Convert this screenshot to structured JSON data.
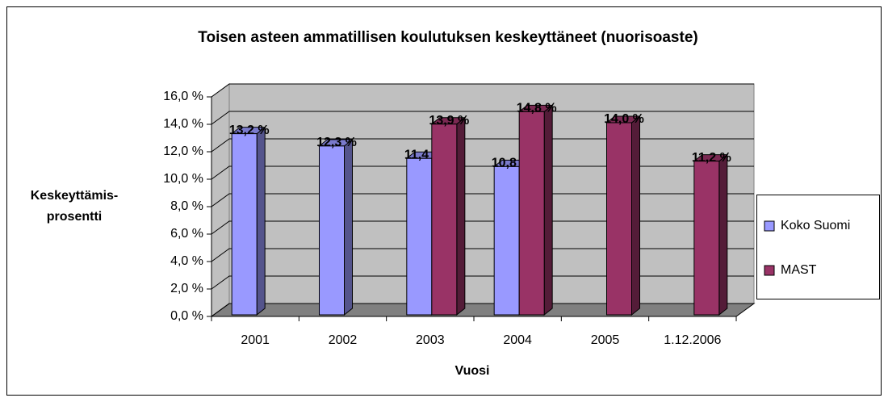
{
  "chart_data": {
    "type": "bar3d",
    "title": "Toisen asteen ammatillisen koulutuksen keskeyttäneet (nuorisoaste)",
    "x_label": "Vuosi",
    "y_label": [
      "Keskeyttämis-",
      "prosentti"
    ],
    "categories": [
      "2001",
      "2002",
      "2003",
      "2004",
      "2005",
      "1.12.2006"
    ],
    "series": [
      {
        "name": "Koko Suomi",
        "color": "#9999ff",
        "values": [
          13.2,
          12.3,
          11.4,
          10.8,
          null,
          null
        ],
        "value_labels": [
          "13,2 %",
          "12,3 %",
          "11,4 %",
          "10,8 %",
          null,
          null
        ]
      },
      {
        "name": "MAST",
        "color": "#993366",
        "values": [
          null,
          null,
          13.9,
          14.8,
          14.0,
          11.2
        ],
        "value_labels": [
          null,
          null,
          "13,9 %",
          "14,8 %",
          "14,0 %",
          "11,2 %"
        ]
      }
    ],
    "ylim": [
      0,
      16
    ],
    "yticks": [
      {
        "value": 0,
        "label": "0,0 %"
      },
      {
        "value": 2,
        "label": "2,0 %"
      },
      {
        "value": 4,
        "label": "4,0 %"
      },
      {
        "value": 6,
        "label": "6,0 %"
      },
      {
        "value": 8,
        "label": "8,0 %"
      },
      {
        "value": 10,
        "label": "10,0 %"
      },
      {
        "value": 12,
        "label": "12,0 %"
      },
      {
        "value": 14,
        "label": "14,0 %"
      },
      {
        "value": 16,
        "label": "16,0 %"
      }
    ],
    "grid": true,
    "legend": "right",
    "wall_color": "#c0c0c0",
    "floor_color": "#808080"
  }
}
